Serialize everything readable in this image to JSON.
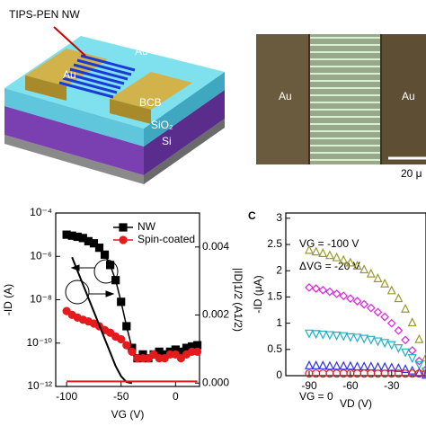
{
  "schematic": {
    "nanowire_label": "TIPS-PEN NW",
    "electrode_left": "Au",
    "electrode_right": "Au",
    "layer_top": "BCB",
    "layer_middle": "SiO₂",
    "layer_bottom": "Si"
  },
  "micrograph": {
    "electrode_left": "Au",
    "electrode_right": "Au",
    "scale_bar": "20 μ"
  },
  "chart_data": [
    {
      "type": "line",
      "xlabel": "VG (V)",
      "ylabel": "-ID (A)",
      "y2label": "|ID|1/2 (A1/2)",
      "ylog": true,
      "legend": "upper right",
      "xlim": [
        -110,
        22
      ],
      "xticks": [
        -100,
        -50,
        0
      ],
      "ylim": [
        1e-12,
        0.0001
      ],
      "yticks": [
        {
          "value": 1e-12,
          "label": "10⁻¹²"
        },
        {
          "value": 1e-10,
          "label": "10⁻¹⁰"
        },
        {
          "value": 1e-08,
          "label": "10⁻⁸"
        },
        {
          "value": 1e-06,
          "label": "10⁻⁶"
        },
        {
          "value": 0.0001,
          "label": "10⁻⁴"
        }
      ],
      "y2lim": [
        -0.0001,
        0.005
      ],
      "y2ticks": [
        0.0,
        0.002,
        0.004
      ],
      "y2tick_labels": [
        "0.000",
        "0.002",
        "0.004"
      ],
      "x": [
        -100,
        -95,
        -90,
        -85,
        -80,
        -75,
        -70,
        -65,
        -60,
        -55,
        -50,
        -45,
        -40,
        -35,
        -30,
        -25,
        -20,
        -15,
        -10,
        -5,
        0,
        5,
        10,
        15,
        20
      ],
      "series": [
        {
          "name": "NW",
          "color": "#000000",
          "marker": "square",
          "values": [
            1e-05,
            9e-06,
            8e-06,
            7e-06,
            5e-06,
            4e-06,
            2.5e-06,
            1.2e-06,
            4e-07,
            8e-08,
            8e-09,
            6e-10,
            6e-11,
            2e-11,
            3e-11,
            2e-11,
            3e-11,
            4e-11,
            3e-11,
            4e-11,
            5e-11,
            4e-11,
            6e-11,
            7e-11,
            8e-11
          ]
        },
        {
          "name": "Spin-coated",
          "color": "#e41a1c",
          "marker": "circle",
          "values": [
            3e-09,
            2e-09,
            1.5e-09,
            1.2e-09,
            1e-09,
            8e-10,
            6e-10,
            4e-10,
            3e-10,
            2e-10,
            1.5e-10,
            8e-11,
            4e-11,
            2e-11,
            2e-11,
            2e-11,
            3e-11,
            2e-11,
            2e-11,
            3e-11,
            3e-11,
            2e-11,
            3e-11,
            4e-11,
            4e-11
          ]
        },
        {
          "axis": "y2",
          "color": "#000000",
          "values": [
            null,
            0.0037,
            0.0033,
            0.0029,
            0.0025,
            0.0021,
            0.0017,
            0.0013,
            0.0009,
            0.0005,
            0.0002,
            3e-05,
            0.0,
            null,
            null,
            null,
            null,
            null,
            null,
            null,
            null,
            null,
            null,
            null,
            null
          ]
        },
        {
          "axis": "y2",
          "color": "#e41a1c",
          "values": [
            5e-05,
            5e-05,
            5e-05,
            5e-05,
            5e-05,
            5e-05,
            5e-05,
            5e-05,
            5e-05,
            5e-05,
            5e-05,
            5e-05,
            5e-05,
            5e-05,
            5e-05,
            5e-05,
            5e-05,
            5e-05,
            5e-05,
            5e-05,
            5e-05,
            5e-05,
            5e-05,
            5e-05,
            5e-05
          ]
        }
      ]
    },
    {
      "type": "scatter",
      "label": "C",
      "xlabel": "VD (V)",
      "ylabel": "-ID (μA)",
      "xlim": [
        -107,
        -5
      ],
      "xticks": [
        -90,
        -60,
        -30
      ],
      "ylim": [
        0,
        3.1
      ],
      "yticks": [
        0,
        0.5,
        1,
        1.5,
        2,
        2.5,
        3
      ],
      "annotations": [
        "VG = -100 V",
        "ΔVG = -20 V",
        "VG = 0"
      ],
      "x": [
        -90,
        -85,
        -80,
        -75,
        -70,
        -65,
        -60,
        -55,
        -50,
        -45,
        -40,
        -35,
        -30,
        -25,
        -20,
        -15,
        -10,
        -5
      ],
      "series": [
        {
          "color": "#9a9a2a",
          "marker": "triangle-up",
          "values": [
            2.4,
            2.37,
            2.34,
            2.3,
            2.26,
            2.21,
            2.16,
            2.1,
            2.03,
            1.95,
            1.86,
            1.76,
            1.63,
            1.48,
            1.28,
            1.02,
            0.7,
            0.35
          ]
        },
        {
          "color": "#e020e0",
          "marker": "diamond",
          "values": [
            1.68,
            1.66,
            1.63,
            1.6,
            1.56,
            1.52,
            1.47,
            1.42,
            1.36,
            1.29,
            1.21,
            1.12,
            1.0,
            0.86,
            0.68,
            0.48,
            0.28,
            0.12
          ]
        },
        {
          "color": "#20b0c0",
          "marker": "triangle-down",
          "values": [
            0.8,
            0.79,
            0.78,
            0.77,
            0.76,
            0.75,
            0.73,
            0.72,
            0.7,
            0.68,
            0.65,
            0.62,
            0.58,
            0.52,
            0.44,
            0.33,
            0.2,
            0.08
          ]
        },
        {
          "color": "#3030e0",
          "marker": "triangle-up",
          "values": [
            0.2,
            0.2,
            0.2,
            0.19,
            0.19,
            0.19,
            0.19,
            0.18,
            0.18,
            0.18,
            0.17,
            0.17,
            0.16,
            0.15,
            0.13,
            0.1,
            0.06,
            0.02
          ]
        },
        {
          "color": "#e02020",
          "marker": "circle",
          "values": [
            0.04,
            0.04,
            0.04,
            0.04,
            0.04,
            0.04,
            0.04,
            0.04,
            0.04,
            0.04,
            0.04,
            0.04,
            0.04,
            0.04,
            0.04,
            0.04,
            0.04,
            0.04
          ]
        }
      ]
    }
  ]
}
